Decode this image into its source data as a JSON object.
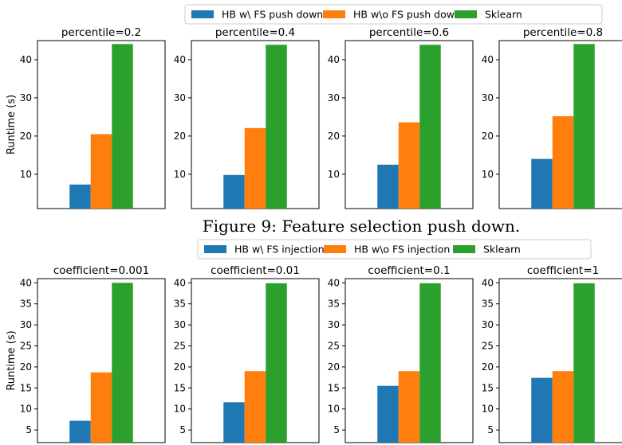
{
  "colors": {
    "hb_with": "#1f77b4",
    "hb_without": "#ff7f0e",
    "sklearn": "#2ca02c"
  },
  "caption": "Figure 9: Feature selection push down.",
  "chart_data": [
    {
      "type": "bar",
      "legend": [
        "HB w\\ FS push down",
        "HB w\\o FS push down",
        "Sklearn"
      ],
      "ylabel": "Runtime (s)",
      "ylim": [
        1,
        45
      ],
      "yticks": [
        10,
        20,
        30,
        40
      ],
      "legend_position": "top-center",
      "grid": false,
      "panels": [
        {
          "title": "percentile=0.2",
          "values": [
            7.3,
            20.5,
            44.1
          ]
        },
        {
          "title": "percentile=0.4",
          "values": [
            9.8,
            22.1,
            43.9
          ]
        },
        {
          "title": "percentile=0.6",
          "values": [
            12.5,
            23.6,
            43.9
          ]
        },
        {
          "title": "percentile=0.8",
          "values": [
            14.0,
            25.2,
            44.1
          ]
        }
      ]
    },
    {
      "type": "bar",
      "legend": [
        "HB w\\ FS injection",
        "HB w\\o FS injection",
        "Sklearn"
      ],
      "ylabel": "Runtime (s)",
      "ylim": [
        2,
        41
      ],
      "yticks": [
        5,
        10,
        15,
        20,
        25,
        30,
        35,
        40
      ],
      "legend_position": "top-center",
      "grid": false,
      "panels": [
        {
          "title": "coefficient=0.001",
          "values": [
            7.2,
            18.7,
            40.0
          ]
        },
        {
          "title": "coefficient=0.01",
          "values": [
            11.6,
            19.0,
            39.9
          ]
        },
        {
          "title": "coefficient=0.1",
          "values": [
            15.5,
            19.0,
            39.9
          ]
        },
        {
          "title": "coefficient=1",
          "values": [
            17.4,
            19.0,
            39.9
          ]
        }
      ]
    }
  ]
}
